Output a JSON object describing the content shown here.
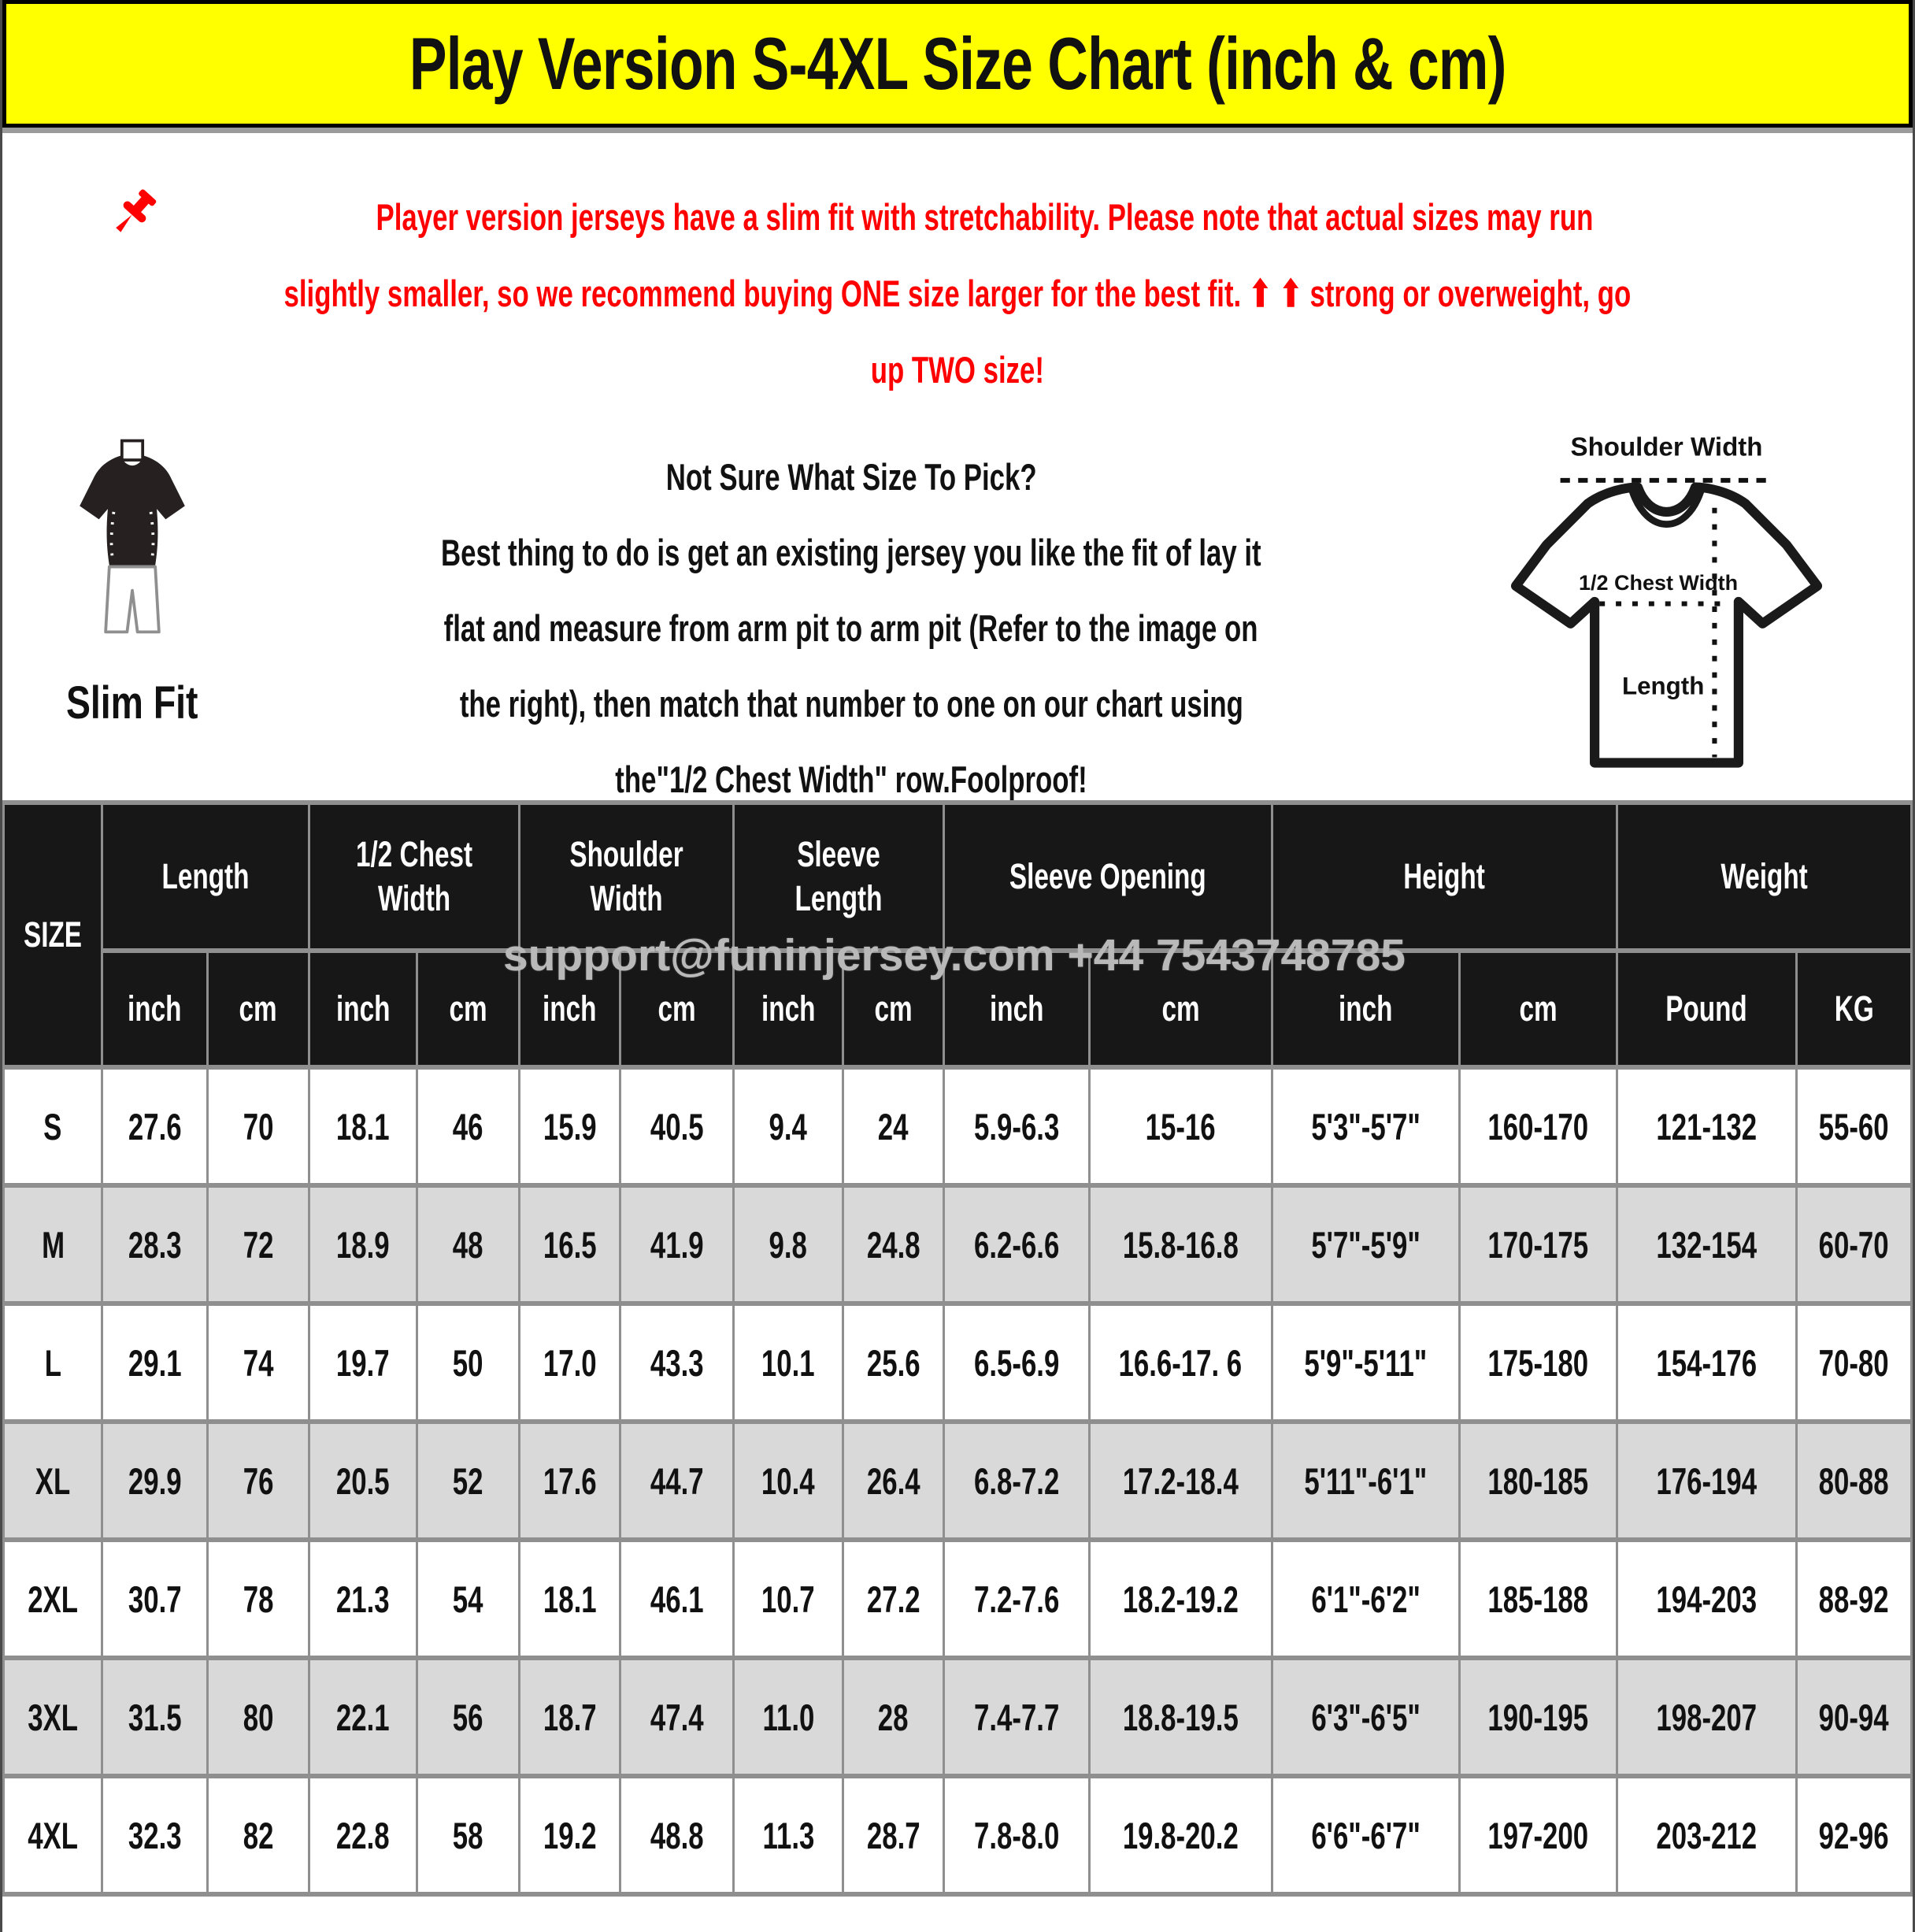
{
  "title": "Play Version S-4XL Size Chart (inch & cm)",
  "notice": {
    "line1": "Player version jerseys have a slim fit with stretchability. Please note that actual sizes may run",
    "line2": "slightly smaller, so we recommend buying ONE size larger for the best fit. ⬆ ⬆ strong or overweight, go",
    "line3": "up TWO size!"
  },
  "fit": {
    "label": "Slim Fit"
  },
  "guide": {
    "lines": [
      "Not Sure What Size To Pick?",
      "Best thing to do is get an existing jersey you like the fit of lay it",
      "flat and measure from arm pit to arm pit (Refer to the image on",
      "the right), then match that number to one on our chart using",
      "the\"1/2 Chest Width\" row.Foolproof!"
    ]
  },
  "diagram": {
    "shoulder_label": "Shoulder Width",
    "chest_label": "1/2 Chest Width",
    "length_label": "Length"
  },
  "watermark": "support@funinjersey.com +44 7543748785",
  "table": {
    "size_header": "SIZE",
    "groups": [
      {
        "label": "Length",
        "subs": [
          "inch",
          "cm"
        ]
      },
      {
        "label": "1/2 Chest\nWidth",
        "subs": [
          "inch",
          "cm"
        ]
      },
      {
        "label": "Shoulder\nWidth",
        "subs": [
          "inch",
          "cm"
        ]
      },
      {
        "label": "Sleeve\nLength",
        "subs": [
          "inch",
          "cm"
        ]
      },
      {
        "label": "Sleeve Opening",
        "subs": [
          "inch",
          "cm"
        ]
      },
      {
        "label": "Height",
        "subs": [
          "inch",
          "cm"
        ]
      },
      {
        "label": "Weight",
        "subs": [
          "Pound",
          "KG"
        ]
      }
    ],
    "rows": [
      {
        "size": "S",
        "values": [
          "27.6",
          "70",
          "18.1",
          "46",
          "15.9",
          "40.5",
          "9.4",
          "24",
          "5.9-6.3",
          "15-16",
          "5'3\"-5'7\"",
          "160-170",
          "121-132",
          "55-60"
        ]
      },
      {
        "size": "M",
        "values": [
          "28.3",
          "72",
          "18.9",
          "48",
          "16.5",
          "41.9",
          "9.8",
          "24.8",
          "6.2-6.6",
          "15.8-16.8",
          "5'7\"-5'9\"",
          "170-175",
          "132-154",
          "60-70"
        ]
      },
      {
        "size": "L",
        "values": [
          "29.1",
          "74",
          "19.7",
          "50",
          "17.0",
          "43.3",
          "10.1",
          "25.6",
          "6.5-6.9",
          "16.6-17. 6",
          "5'9\"-5'11\"",
          "175-180",
          "154-176",
          "70-80"
        ]
      },
      {
        "size": "XL",
        "values": [
          "29.9",
          "76",
          "20.5",
          "52",
          "17.6",
          "44.7",
          "10.4",
          "26.4",
          "6.8-7.2",
          "17.2-18.4",
          "5'11\"-6'1\"",
          "180-185",
          "176-194",
          "80-88"
        ]
      },
      {
        "size": "2XL",
        "values": [
          "30.7",
          "78",
          "21.3",
          "54",
          "18.1",
          "46.1",
          "10.7",
          "27.2",
          "7.2-7.6",
          "18.2-19.2",
          "6'1\"-6'2\"",
          "185-188",
          "194-203",
          "88-92"
        ]
      },
      {
        "size": "3XL",
        "values": [
          "31.5",
          "80",
          "22.1",
          "56",
          "18.7",
          "47.4",
          "11.0",
          "28",
          "7.4-7.7",
          "18.8-19.5",
          "6'3\"-6'5\"",
          "190-195",
          "198-207",
          "90-94"
        ]
      },
      {
        "size": "4XL",
        "values": [
          "32.3",
          "82",
          "22.8",
          "58",
          "19.2",
          "48.8",
          "11.3",
          "28.7",
          "7.8-8.0",
          "19.8-20.2",
          "6'6\"-6'7\"",
          "197-200",
          "203-212",
          "92-96"
        ]
      }
    ]
  },
  "colors": {
    "accent_yellow": "#ffff00",
    "notice_red": "#fe0000",
    "header_black": "#171717",
    "row_alt_gray": "#d9d9d9",
    "border_gray": "#8f8f8f",
    "watermark_gray": "#b9b9b9"
  }
}
